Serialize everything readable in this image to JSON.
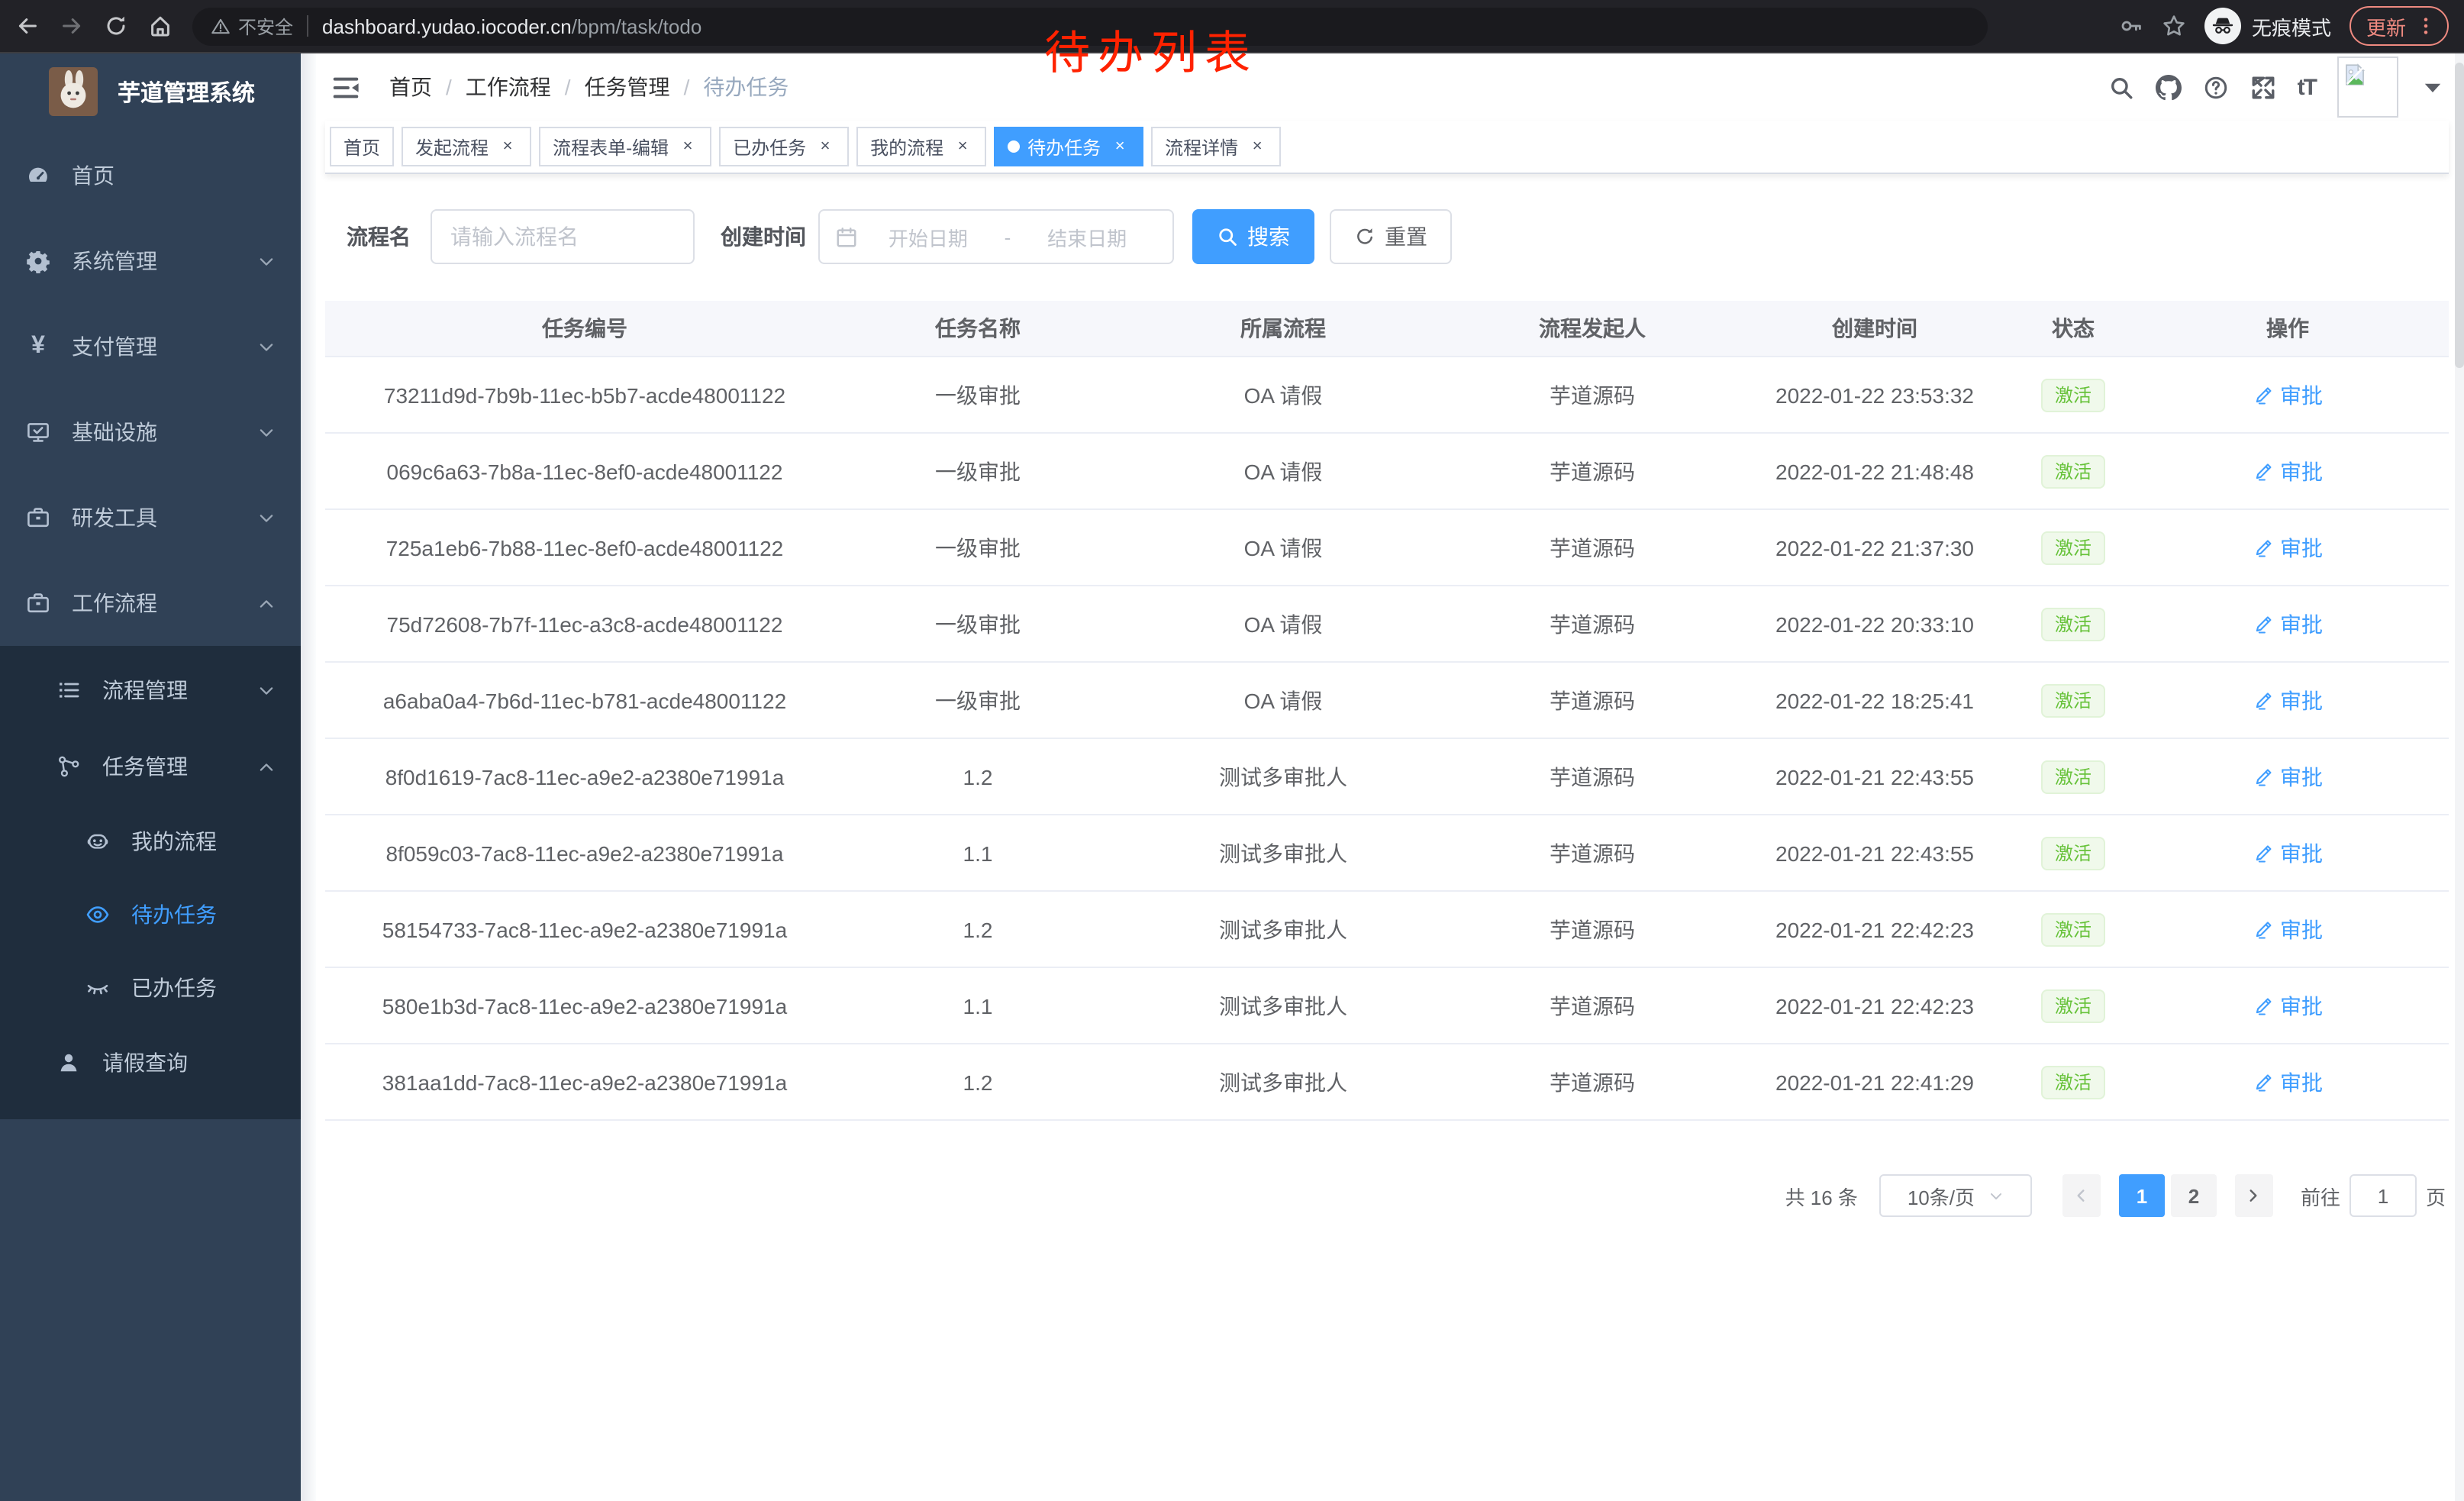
{
  "browser": {
    "security_label": "不安全",
    "url_host": "dashboard.yudao.iocoder.cn",
    "url_path": "/bpm/task/todo",
    "incognito_label": "无痕模式",
    "update_label": "更新"
  },
  "annotation": {
    "text": "待办列表",
    "color": "#ff2200"
  },
  "sidebar": {
    "title": "芋道管理系统",
    "top_items": [
      {
        "key": "home",
        "label": "首页",
        "icon": "dashboard-icon",
        "arrow": null,
        "active": false
      },
      {
        "key": "system",
        "label": "系统管理",
        "icon": "gear-icon",
        "arrow": "down",
        "active": false
      },
      {
        "key": "payment",
        "label": "支付管理",
        "icon": "yen-icon",
        "arrow": "down",
        "active": false
      },
      {
        "key": "infra",
        "label": "基础设施",
        "icon": "monitor-icon",
        "arrow": "down",
        "active": false
      },
      {
        "key": "devtools",
        "label": "研发工具",
        "icon": "toolbox-icon",
        "arrow": "down",
        "active": false
      },
      {
        "key": "workflow",
        "label": "工作流程",
        "icon": "briefcase-icon",
        "arrow": "up",
        "active": false
      }
    ],
    "sub_items": [
      {
        "key": "process-mgmt",
        "label": "流程管理",
        "icon": "list-icon",
        "arrow": "down",
        "level": 2,
        "active": false
      },
      {
        "key": "task-mgmt",
        "label": "任务管理",
        "icon": "flow-icon",
        "arrow": "up",
        "level": 2,
        "active": false
      },
      {
        "key": "my-process",
        "label": "我的流程",
        "icon": "robot-icon",
        "arrow": null,
        "level": 3,
        "active": false
      },
      {
        "key": "todo-task",
        "label": "待办任务",
        "icon": "eye-icon",
        "arrow": null,
        "level": 3,
        "active": true
      },
      {
        "key": "done-task",
        "label": "已办任务",
        "icon": "eye-closed-icon",
        "arrow": null,
        "level": 3,
        "active": false
      },
      {
        "key": "leave-query",
        "label": "请假查询",
        "icon": "user-icon",
        "arrow": null,
        "level": 2,
        "active": false
      }
    ]
  },
  "header": {
    "breadcrumb": [
      "首页",
      "工作流程",
      "任务管理",
      "待办任务"
    ],
    "separator": "/"
  },
  "tabs": [
    {
      "key": "home",
      "label": "首页",
      "closable": false,
      "active": false
    },
    {
      "key": "start-process",
      "label": "发起流程",
      "closable": true,
      "active": false
    },
    {
      "key": "form-edit",
      "label": "流程表单-编辑",
      "closable": true,
      "active": false
    },
    {
      "key": "done-task",
      "label": "已办任务",
      "closable": true,
      "active": false
    },
    {
      "key": "my-process",
      "label": "我的流程",
      "closable": true,
      "active": false
    },
    {
      "key": "todo-task",
      "label": "待办任务",
      "closable": true,
      "active": true
    },
    {
      "key": "process-detail",
      "label": "流程详情",
      "closable": true,
      "active": false
    }
  ],
  "filters": {
    "name_label": "流程名",
    "name_placeholder": "请输入流程名",
    "time_label": "创建时间",
    "start_placeholder": "开始日期",
    "separator": "-",
    "end_placeholder": "结束日期",
    "search_label": "搜索",
    "reset_label": "重置"
  },
  "table": {
    "columns": [
      "任务编号",
      "任务名称",
      "所属流程",
      "流程发起人",
      "创建时间",
      "状态",
      "操作"
    ],
    "rows": [
      {
        "id": "73211d9d-7b9b-11ec-b5b7-acde48001122",
        "name": "一级审批",
        "process": "OA 请假",
        "initiator": "芋道源码",
        "time": "2022-01-22 23:53:32",
        "status": "激活",
        "action": "审批"
      },
      {
        "id": "069c6a63-7b8a-11ec-8ef0-acde48001122",
        "name": "一级审批",
        "process": "OA 请假",
        "initiator": "芋道源码",
        "time": "2022-01-22 21:48:48",
        "status": "激活",
        "action": "审批"
      },
      {
        "id": "725a1eb6-7b88-11ec-8ef0-acde48001122",
        "name": "一级审批",
        "process": "OA 请假",
        "initiator": "芋道源码",
        "time": "2022-01-22 21:37:30",
        "status": "激活",
        "action": "审批"
      },
      {
        "id": "75d72608-7b7f-11ec-a3c8-acde48001122",
        "name": "一级审批",
        "process": "OA 请假",
        "initiator": "芋道源码",
        "time": "2022-01-22 20:33:10",
        "status": "激活",
        "action": "审批"
      },
      {
        "id": "a6aba0a4-7b6d-11ec-b781-acde48001122",
        "name": "一级审批",
        "process": "OA 请假",
        "initiator": "芋道源码",
        "time": "2022-01-22 18:25:41",
        "status": "激活",
        "action": "审批"
      },
      {
        "id": "8f0d1619-7ac8-11ec-a9e2-a2380e71991a",
        "name": "1.2",
        "process": "测试多审批人",
        "initiator": "芋道源码",
        "time": "2022-01-21 22:43:55",
        "status": "激活",
        "action": "审批"
      },
      {
        "id": "8f059c03-7ac8-11ec-a9e2-a2380e71991a",
        "name": "1.1",
        "process": "测试多审批人",
        "initiator": "芋道源码",
        "time": "2022-01-21 22:43:55",
        "status": "激活",
        "action": "审批"
      },
      {
        "id": "58154733-7ac8-11ec-a9e2-a2380e71991a",
        "name": "1.2",
        "process": "测试多审批人",
        "initiator": "芋道源码",
        "time": "2022-01-21 22:42:23",
        "status": "激活",
        "action": "审批"
      },
      {
        "id": "580e1b3d-7ac8-11ec-a9e2-a2380e71991a",
        "name": "1.1",
        "process": "测试多审批人",
        "initiator": "芋道源码",
        "time": "2022-01-21 22:42:23",
        "status": "激活",
        "action": "审批"
      },
      {
        "id": "381aa1dd-7ac8-11ec-a9e2-a2380e71991a",
        "name": "1.2",
        "process": "测试多审批人",
        "initiator": "芋道源码",
        "time": "2022-01-21 22:41:29",
        "status": "激活",
        "action": "审批"
      }
    ]
  },
  "pagination": {
    "total": "共 16 条",
    "page_size": "10条/页",
    "pages": [
      "1",
      "2"
    ],
    "active_page": "1",
    "goto_label": "前往",
    "goto_value": "1",
    "unit_label": "页"
  },
  "colors": {
    "accent": "#409eff",
    "success_text": "#67c23a",
    "success_bg": "#f0f9eb",
    "sidebar_bg": "#304156",
    "submenu_bg": "#1f2d3d",
    "annotation_red": "#ff2200",
    "tab_border": "#d8dce5"
  }
}
